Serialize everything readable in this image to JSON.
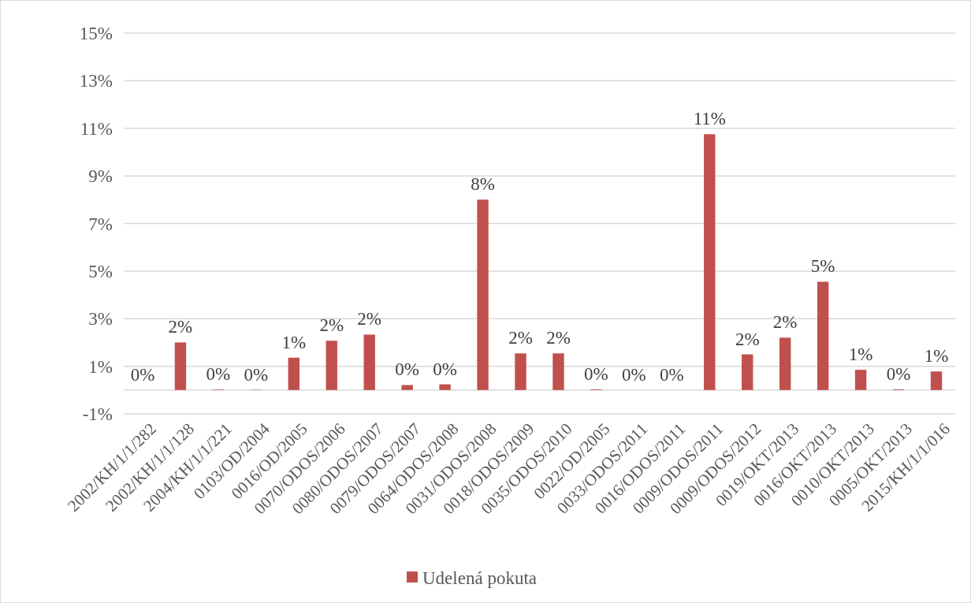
{
  "chart_data": {
    "type": "bar",
    "categories": [
      "2002/KH/1/1/282",
      "2002/KH/1/1/128",
      "2004/KH/1/1/221",
      "0103/OD/2004",
      "0016/OD/2005",
      "0070/ODOS/2006",
      "0080/ODOS/2007",
      "0079/ODOS/2007",
      "0064/ODOS/2008",
      "0031/ODOS/2008",
      "0018/ODOS/2009",
      "0035/ODOS/2010",
      "0022/OD/2005",
      "0033/ODOS/2011",
      "0016/ODOS/2011",
      "0009/ODOS/2011",
      "0009/ODOS/2012",
      "0019/OKT/2013",
      "0016/OKT/2013",
      "0010/OKT/2013",
      "0005/OKT/2013",
      "2015/KH/1/1/016"
    ],
    "series": [
      {
        "name": "Udelená pokuta",
        "color": "#c0504d",
        "values": [
          0,
          2.0,
          0.02,
          0.01,
          1.36,
          2.07,
          2.33,
          0.21,
          0.24,
          8.0,
          1.54,
          1.54,
          0.03,
          0,
          0,
          10.75,
          1.5,
          2.2,
          4.55,
          0.85,
          0.03,
          0.78
        ],
        "value_labels": [
          "0%",
          "2%",
          "0%",
          "0%",
          "1%",
          "2%",
          "2%",
          "0%",
          "0%",
          "8%",
          "2%",
          "2%",
          "0%",
          "0%",
          "0%",
          "11%",
          "2%",
          "2%",
          "5%",
          "1%",
          "0%",
          "1%"
        ]
      }
    ],
    "ylim": [
      -1,
      15
    ],
    "yticks": [
      {
        "value": -1,
        "label": "-1%"
      },
      {
        "value": 1,
        "label": "1%"
      },
      {
        "value": 3,
        "label": "3%"
      },
      {
        "value": 5,
        "label": "5%"
      },
      {
        "value": 7,
        "label": "7%"
      },
      {
        "value": 9,
        "label": "9%"
      },
      {
        "value": 11,
        "label": "11%"
      },
      {
        "value": 13,
        "label": "13%"
      },
      {
        "value": 15,
        "label": "15%"
      }
    ],
    "grid": "y",
    "legend": "bottom"
  }
}
